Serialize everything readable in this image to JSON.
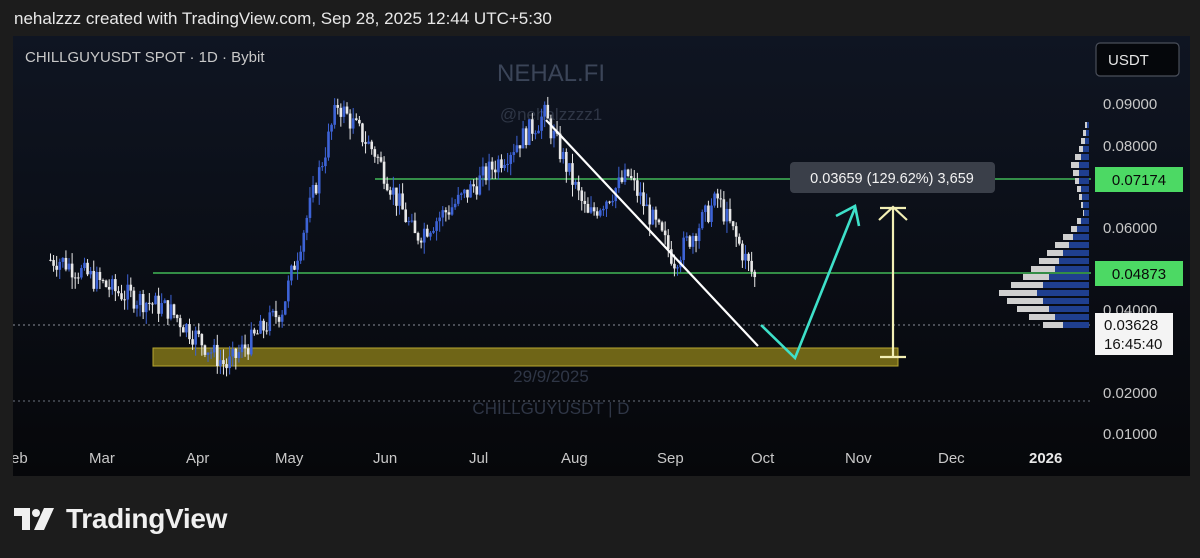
{
  "caption": "nehalzzz created with TradingView.com, Sep 28, 2025 12:44 UTC+5:30",
  "brand": "TradingView",
  "colors": {
    "background": "#0e1017",
    "candle_up": "#3d63d6",
    "candle_down": "#e8e8e8",
    "level_line": "#4cd964",
    "support_zone": "#8a7c19",
    "trend_line": "#ffffff",
    "projection_arrow": "#3ee0c9",
    "measure_arrow": "#f2efb5"
  },
  "chart_data": {
    "type": "candlestick",
    "symbol_label": "CHILLGUYUSDT SPOT · 1D · Bybit",
    "currency_button": "USDT",
    "watermark_top": "NEHAL.FI",
    "watermark_handle": "@nehalzzzz1",
    "watermark_date": "29/9/2025",
    "watermark_symbol": "CHILLGUYUSDT | D",
    "y_axis": {
      "ticks": [
        "0.09000",
        "0.08000",
        "0.06000",
        "0.04000",
        "0.02000",
        "0.01000"
      ],
      "tick_values": [
        0.09,
        0.08,
        0.06,
        0.04,
        0.02,
        0.01
      ]
    },
    "x_axis": {
      "ticks": [
        "eb",
        "Mar",
        "Apr",
        "May",
        "Jun",
        "Jul",
        "Aug",
        "Sep",
        "Oct",
        "Nov",
        "Dec",
        "2026"
      ]
    },
    "price_labels": {
      "upper_level": "0.07174",
      "middle_level": "0.04873",
      "current_price": "0.03628",
      "countdown": "16:45:40"
    },
    "levels": [
      0.07174,
      0.04873
    ],
    "measure_label": "0.03659 (129.62%) 3,659",
    "support_zone": [
      0.0275,
      0.031
    ],
    "swing_points": [
      {
        "date": "2025-02-15",
        "price": 0.04
      },
      {
        "date": "2025-03-05",
        "price": 0.034
      },
      {
        "date": "2025-03-22",
        "price": 0.031
      },
      {
        "date": "2025-04-10",
        "price": 0.023
      },
      {
        "date": "2025-04-28",
        "price": 0.031
      },
      {
        "date": "2025-05-16",
        "price": 0.09
      },
      {
        "date": "2025-05-28",
        "price": 0.07
      },
      {
        "date": "2025-06-10",
        "price": 0.045
      },
      {
        "date": "2025-06-25",
        "price": 0.055
      },
      {
        "date": "2025-07-22",
        "price": 0.085
      },
      {
        "date": "2025-08-05",
        "price": 0.05
      },
      {
        "date": "2025-08-18",
        "price": 0.062
      },
      {
        "date": "2025-09-02",
        "price": 0.04
      },
      {
        "date": "2025-09-16",
        "price": 0.055
      },
      {
        "date": "2025-09-28",
        "price": 0.03628
      }
    ]
  }
}
